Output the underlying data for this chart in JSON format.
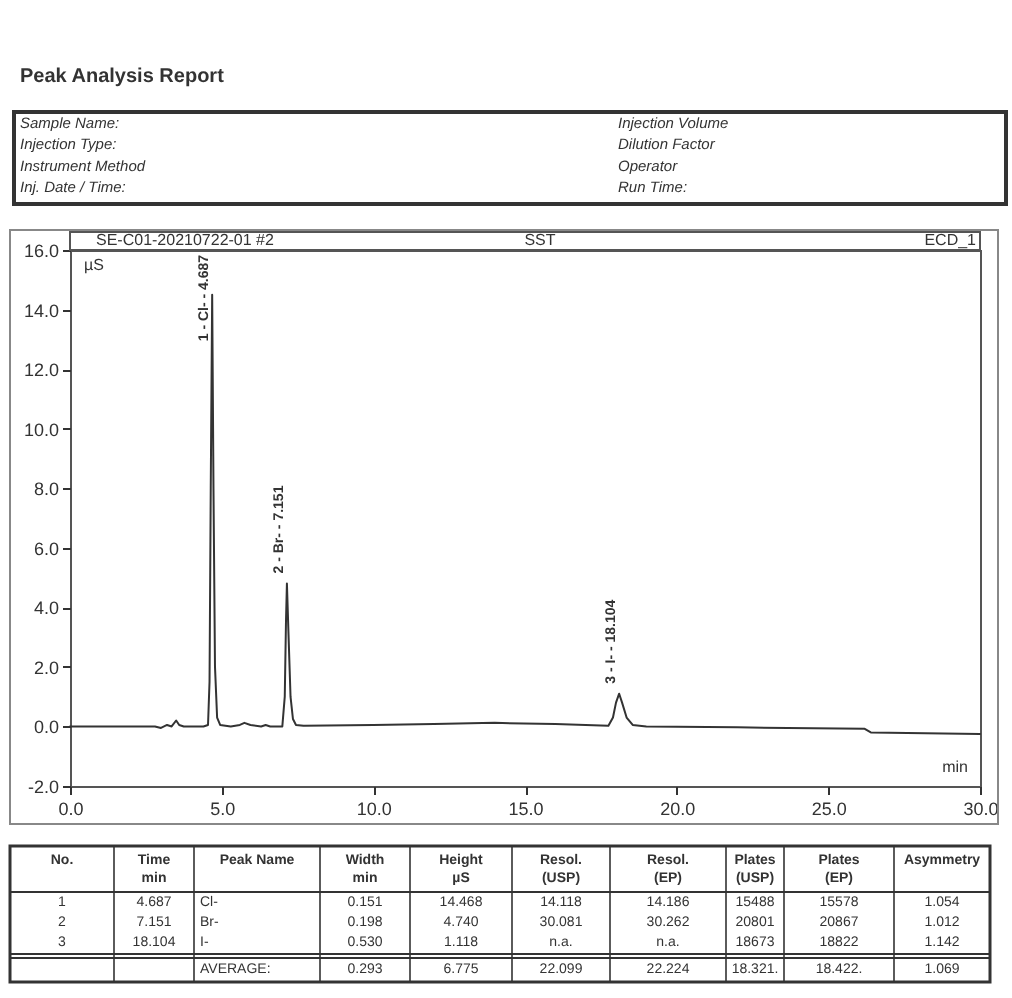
{
  "chart_data": {
    "type": "line",
    "title": "Peak Analysis Report",
    "xlabel": "min",
    "ylabel": "µS",
    "color": "#333333",
    "x": [
      0,
      2.5,
      2.8,
      3.0,
      3.2,
      3.35,
      3.5,
      3.6,
      3.75,
      4.4,
      4.55,
      4.6,
      4.64,
      4.687,
      4.73,
      4.78,
      4.85,
      4.95,
      5.3,
      5.6,
      5.75,
      5.95,
      6.3,
      6.45,
      6.6,
      7.0,
      7.08,
      7.12,
      7.151,
      7.2,
      7.27,
      7.35,
      7.45,
      7.7,
      10,
      12,
      14,
      16,
      17.5,
      17.75,
      17.9,
      18.0,
      18.104,
      18.2,
      18.35,
      18.55,
      19,
      22,
      26.2,
      26.4,
      30
    ],
    "values": [
      0,
      0,
      0,
      -0.05,
      0.05,
      0,
      0.2,
      0.05,
      0,
      0,
      0.05,
      1.5,
      8,
      14.5,
      8,
      2,
      0.3,
      0.05,
      0,
      0.05,
      0.12,
      0.05,
      0,
      0.05,
      0,
      0,
      1,
      3.5,
      4.8,
      3.2,
      1,
      0.25,
      0.05,
      0.02,
      0.05,
      0.08,
      0.12,
      0.08,
      0.03,
      0.02,
      0.3,
      0.8,
      1.1,
      0.8,
      0.3,
      0.05,
      0,
      -0.03,
      -0.08,
      -0.2,
      -0.25
    ],
    "xlim": [
      0,
      30
    ],
    "xticks": [
      {
        "value": 0,
        "label": "0.0"
      },
      {
        "value": 5,
        "label": "5.0"
      },
      {
        "value": 10,
        "label": "10.0"
      },
      {
        "value": 15,
        "label": "15.0"
      },
      {
        "value": 20,
        "label": "20.0"
      },
      {
        "value": 25,
        "label": "25.0"
      },
      {
        "value": 30,
        "label": "30.0"
      }
    ],
    "ylim": [
      -2,
      16
    ],
    "yticks": [
      {
        "value": -2,
        "label": "-2.0"
      },
      {
        "value": 0,
        "label": "0.0"
      },
      {
        "value": 2,
        "label": "2.0"
      },
      {
        "value": 4,
        "label": "4.0"
      },
      {
        "value": 6,
        "label": "6.0"
      },
      {
        "value": 8,
        "label": "8.0"
      },
      {
        "value": 10,
        "label": "10.0"
      },
      {
        "value": 12,
        "label": "12.0"
      },
      {
        "value": 14,
        "label": "14.0"
      },
      {
        "value": 16,
        "label": "16.0"
      }
    ],
    "grid": false,
    "annotations": [
      "Sample Name:",
      "Injection Type:",
      "Instrument Method",
      "Inj. Date / Time:",
      "Injection Volume",
      "Dilution Factor",
      "Operator",
      "Run Time:",
      "SE-C01-20210722-01 #2",
      "SST",
      "ECD_1",
      "No.",
      "Time\nmin",
      "Peak Name",
      "Width\nmin",
      "Height\nµS",
      "Resol.\n(USP)",
      "Resol.\n(EP)",
      "Plates\n(USP)",
      "Plates\n(EP)",
      "Asymmetry",
      "1",
      "4.687",
      "Cl-",
      "0.151",
      "14.468",
      "14.118",
      "14.186",
      "15488",
      "15578",
      "1.054",
      "2",
      "7.151",
      "Br-",
      "0.198",
      "4.740",
      "30.081",
      "30.262",
      "20801",
      "20867",
      "1.012",
      "3",
      "18.104",
      "I-",
      "0.530",
      "1.118",
      "n.a.",
      "n.a.",
      "18673",
      "18822",
      "1.142",
      "AVERAGE:",
      "0.293",
      "6.775",
      "22.099",
      "22.224",
      "18.321.",
      "18.422.",
      "1.069",
      {
        "text": "1 - Cl- - 4.687",
        "x": 4.687,
        "y": 12.6
      },
      {
        "text": "2 - Br- - 7.151",
        "x": 7.151,
        "y": 4.8
      },
      {
        "text": "3 - I- - 18.104",
        "x": 18.104,
        "y": 1.1
      }
    ]
  }
}
